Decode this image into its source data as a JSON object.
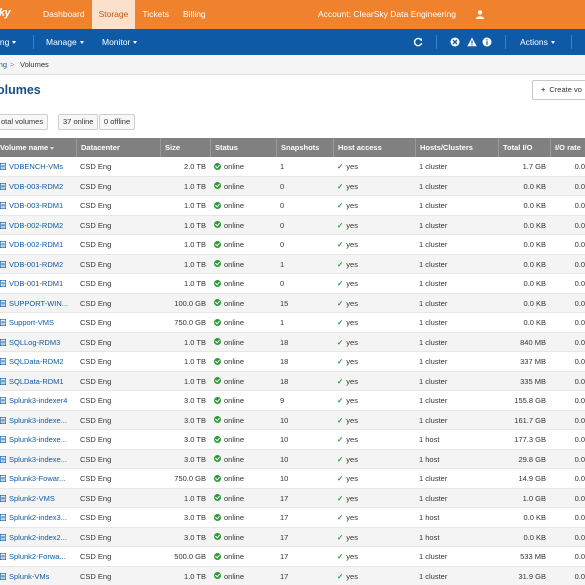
{
  "app": {
    "logo": "Sky",
    "nav": [
      {
        "label": "Dashboard",
        "active": false
      },
      {
        "label": "Storage",
        "active": true
      },
      {
        "label": "Tickets",
        "active": false
      },
      {
        "label": "Billing",
        "active": false
      }
    ],
    "account_label": "Account: ClearSky Data Engineering"
  },
  "toolbar": {
    "first_menu": "ing",
    "manage": "Manage",
    "monitor": "Monitor",
    "actions": "Actions"
  },
  "breadcrumb": {
    "parent": "ing",
    "separator": ">",
    "current": "Volumes"
  },
  "page": {
    "title": "olumes",
    "create_button": "Create vo"
  },
  "filters": {
    "all": "otal volumes",
    "online": {
      "count": "37",
      "label": "online"
    },
    "offline": {
      "count": "0",
      "label": "offline"
    }
  },
  "table": {
    "columns": [
      "Volume name",
      "Datacenter",
      "Size",
      "Status",
      "Snapshots",
      "Host access",
      "Hosts/Clusters",
      "Total I/O",
      "I/O rate"
    ],
    "rows": [
      {
        "name": "VDBENCH-VMs",
        "dc": "CSD Eng",
        "size": "2.0 TB",
        "status": "online",
        "snapshots": "1",
        "access": "yes",
        "hosts": "1 cluster",
        "io": "1.7 GB",
        "rate": "0.0"
      },
      {
        "name": "VDB-003-RDM2",
        "dc": "CSD Eng",
        "size": "1.0 TB",
        "status": "online",
        "snapshots": "0",
        "access": "yes",
        "hosts": "1 cluster",
        "io": "0.0 KB",
        "rate": "0.0"
      },
      {
        "name": "VDB-003-RDM1",
        "dc": "CSD Eng",
        "size": "1.0 TB",
        "status": "online",
        "snapshots": "0",
        "access": "yes",
        "hosts": "1 cluster",
        "io": "0.0 KB",
        "rate": "0.0"
      },
      {
        "name": "VDB-002-RDM2",
        "dc": "CSD Eng",
        "size": "1.0 TB",
        "status": "online",
        "snapshots": "0",
        "access": "yes",
        "hosts": "1 cluster",
        "io": "0.0 KB",
        "rate": "0.0"
      },
      {
        "name": "VDB-002-RDM1",
        "dc": "CSD Eng",
        "size": "1.0 TB",
        "status": "online",
        "snapshots": "0",
        "access": "yes",
        "hosts": "1 cluster",
        "io": "0.0 KB",
        "rate": "0.0"
      },
      {
        "name": "VDB-001-RDM2",
        "dc": "CSD Eng",
        "size": "1.0 TB",
        "status": "online",
        "snapshots": "1",
        "access": "yes",
        "hosts": "1 cluster",
        "io": "0.0 KB",
        "rate": "0.0"
      },
      {
        "name": "VDB-001-RDM1",
        "dc": "CSD Eng",
        "size": "1.0 TB",
        "status": "online",
        "snapshots": "0",
        "access": "yes",
        "hosts": "1 cluster",
        "io": "0.0 KB",
        "rate": "0.0"
      },
      {
        "name": "SUPPORT-WIN...",
        "dc": "CSD Eng",
        "size": "100.0 GB",
        "status": "online",
        "snapshots": "15",
        "access": "yes",
        "hosts": "1 cluster",
        "io": "0.0 KB",
        "rate": "0.0"
      },
      {
        "name": "Support-VMS",
        "dc": "CSD Eng",
        "size": "750.0 GB",
        "status": "online",
        "snapshots": "1",
        "access": "yes",
        "hosts": "1 cluster",
        "io": "0.0 KB",
        "rate": "0.0"
      },
      {
        "name": "SQLLog-RDM3",
        "dc": "CSD Eng",
        "size": "1.0 TB",
        "status": "online",
        "snapshots": "18",
        "access": "yes",
        "hosts": "1 cluster",
        "io": "840 MB",
        "rate": "0.0"
      },
      {
        "name": "SQLData-RDM2",
        "dc": "CSD Eng",
        "size": "1.0 TB",
        "status": "online",
        "snapshots": "18",
        "access": "yes",
        "hosts": "1 cluster",
        "io": "337 MB",
        "rate": "0.0"
      },
      {
        "name": "SQLData-RDM1",
        "dc": "CSD Eng",
        "size": "1.0 TB",
        "status": "online",
        "snapshots": "18",
        "access": "yes",
        "hosts": "1 cluster",
        "io": "335 MB",
        "rate": "0.0"
      },
      {
        "name": "Splunk3-indexer4",
        "dc": "CSD Eng",
        "size": "3.0 TB",
        "status": "online",
        "snapshots": "9",
        "access": "yes",
        "hosts": "1 cluster",
        "io": "155.8 GB",
        "rate": "0.0"
      },
      {
        "name": "Splunk3-indexe...",
        "dc": "CSD Eng",
        "size": "3.0 TB",
        "status": "online",
        "snapshots": "10",
        "access": "yes",
        "hosts": "1 cluster",
        "io": "161.7 GB",
        "rate": "0.0"
      },
      {
        "name": "Splunk3-indexe...",
        "dc": "CSD Eng",
        "size": "3.0 TB",
        "status": "online",
        "snapshots": "10",
        "access": "yes",
        "hosts": "1 host",
        "io": "177.3 GB",
        "rate": "0.0"
      },
      {
        "name": "Splunk3-indexe...",
        "dc": "CSD Eng",
        "size": "3.0 TB",
        "status": "online",
        "snapshots": "10",
        "access": "yes",
        "hosts": "1 host",
        "io": "29.8 GB",
        "rate": "0.0"
      },
      {
        "name": "Splunk3-Fowar...",
        "dc": "CSD Eng",
        "size": "750.0 GB",
        "status": "online",
        "snapshots": "10",
        "access": "yes",
        "hosts": "1 cluster",
        "io": "14.9 GB",
        "rate": "0.0"
      },
      {
        "name": "Splunk2-VMS",
        "dc": "CSD Eng",
        "size": "1.0 TB",
        "status": "online",
        "snapshots": "17",
        "access": "yes",
        "hosts": "1 cluster",
        "io": "1.0 GB",
        "rate": "0.0"
      },
      {
        "name": "Splunk2-index3...",
        "dc": "CSD Eng",
        "size": "3.0 TB",
        "status": "online",
        "snapshots": "17",
        "access": "yes",
        "hosts": "1 host",
        "io": "0.0 KB",
        "rate": "0.0"
      },
      {
        "name": "Splunk2-index2...",
        "dc": "CSD Eng",
        "size": "3.0 TB",
        "status": "online",
        "snapshots": "17",
        "access": "yes",
        "hosts": "1 host",
        "io": "0.0 KB",
        "rate": "0.0"
      },
      {
        "name": "Splunk2-Forwa...",
        "dc": "CSD Eng",
        "size": "500.0 GB",
        "status": "online",
        "snapshots": "17",
        "access": "yes",
        "hosts": "1 cluster",
        "io": "533 MB",
        "rate": "0.0"
      },
      {
        "name": "Splunk-VMs",
        "dc": "CSD Eng",
        "size": "1.0 TB",
        "status": "online",
        "snapshots": "17",
        "access": "yes",
        "hosts": "1 cluster",
        "io": "31.9 GB",
        "rate": "0.0"
      }
    ]
  },
  "colors": {
    "topbar": "#f0812d",
    "toolbar": "#0e5aa6",
    "link": "#0e5aa6",
    "online": "#2e9a3b"
  }
}
